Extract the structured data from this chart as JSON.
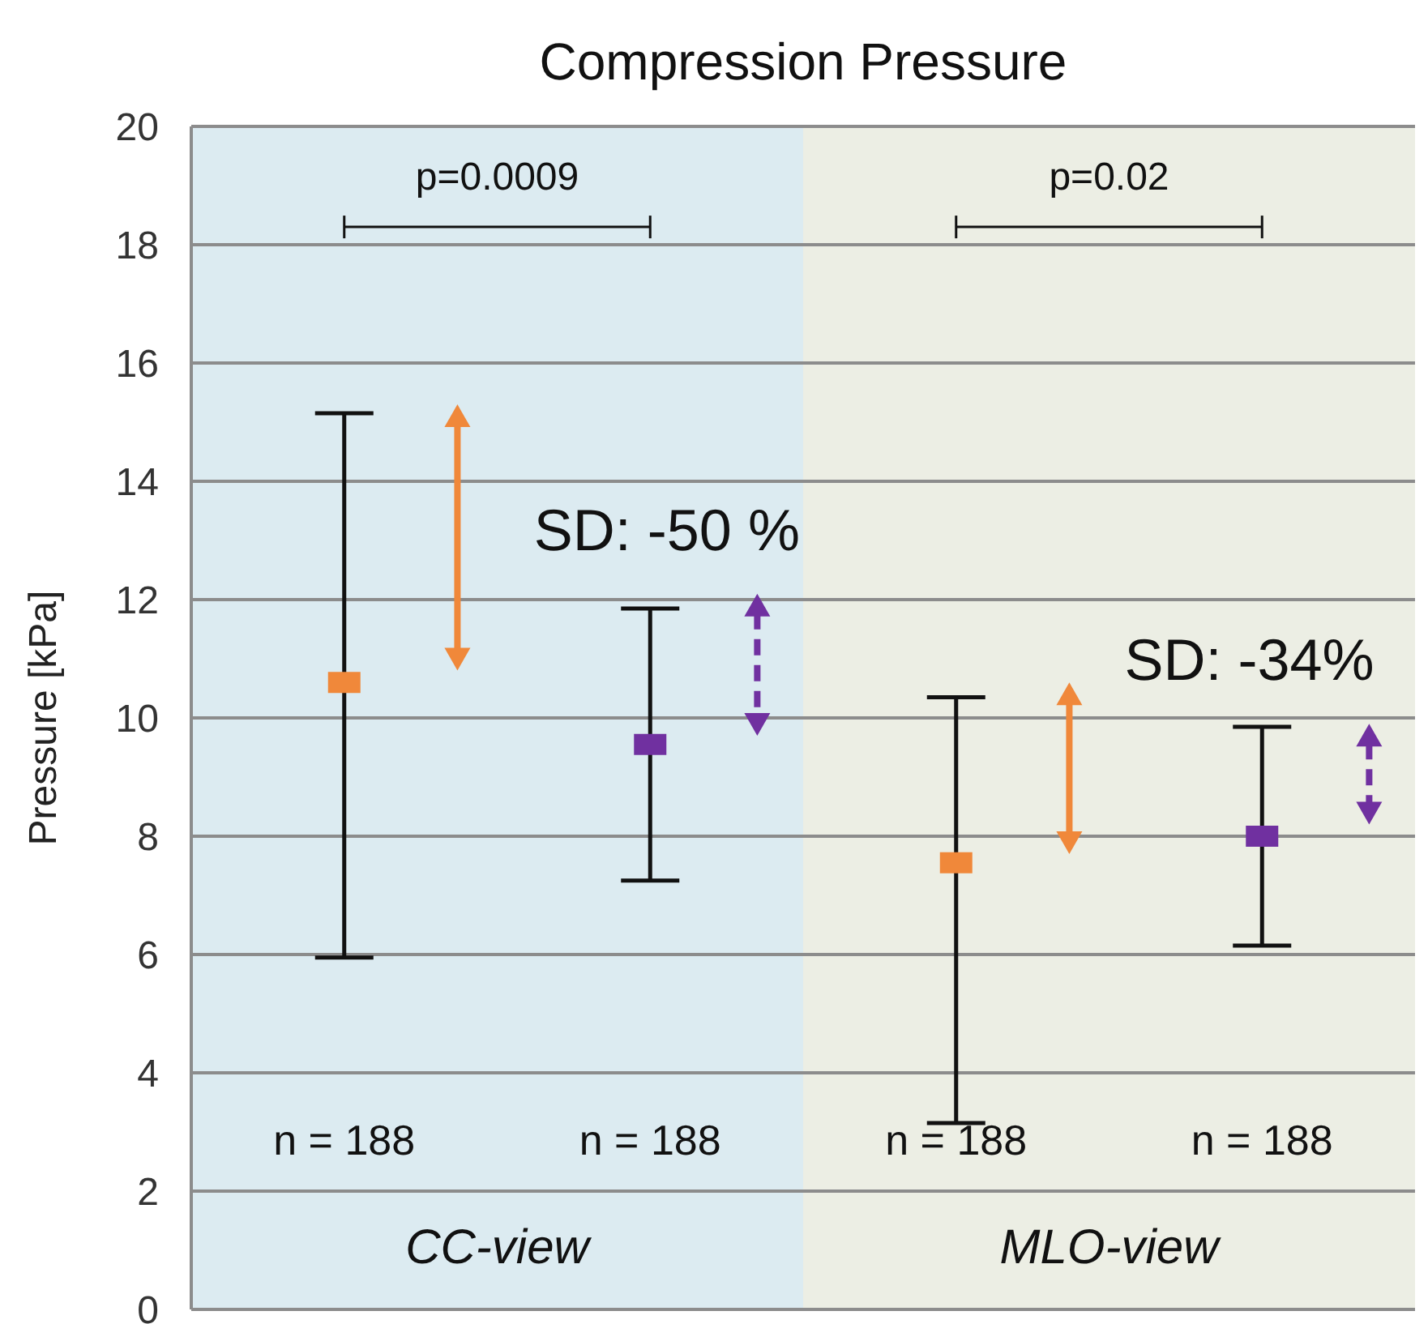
{
  "chart_data": {
    "type": "scatter",
    "title": "Compression Pressure",
    "ylabel": "Pressure [kPa]",
    "categories": [
      null,
      null,
      null,
      null
    ],
    "series": [
      {
        "color": "#f0883a",
        "values": [
          10.6,
          null,
          7.55,
          null
        ],
        "errors": [
          [
            5.95,
            15.15
          ],
          null,
          [
            3.15,
            10.35
          ],
          null
        ]
      },
      {
        "color": "#7030a0",
        "values": [
          null,
          9.55,
          null,
          8.0
        ],
        "errors": [
          null,
          [
            7.25,
            11.85
          ],
          null,
          [
            6.15,
            9.85
          ]
        ]
      }
    ],
    "ylim": [
      0,
      20
    ],
    "yticks": [
      0,
      2,
      4,
      6,
      8,
      10,
      12,
      14,
      16,
      18,
      20
    ],
    "grid": "y",
    "marker": "square",
    "annotations": [
      "p=0.0009",
      "p=0.02",
      "SD: -50 %",
      "SD: -34%",
      "n = 188",
      "n = 188",
      "n = 188",
      "n = 188",
      "CC-view",
      "MLO-view"
    ]
  }
}
